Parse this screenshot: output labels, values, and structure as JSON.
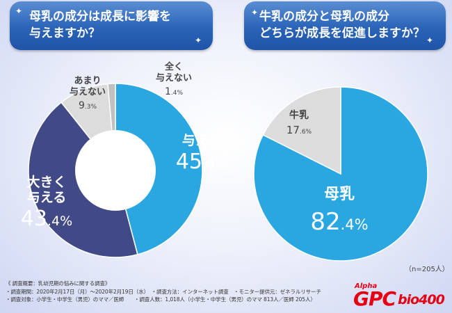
{
  "questions": {
    "left": [
      "母乳の成分は成長に影響を",
      "与えますか？"
    ],
    "right": [
      "牛乳の成分と母乳の成分",
      "どちらが成長を促進しますか？"
    ]
  },
  "chart_data": [
    {
      "type": "pie",
      "title": "母乳の成分は成長に影響を与えますか？",
      "categories": [
        "与える",
        "大きく与える",
        "あまり与えない",
        "全く与えない"
      ],
      "values": [
        45.9,
        43.4,
        9.3,
        1.4
      ],
      "unit": "%",
      "colors": [
        "#2aa7e1",
        "#414a87",
        "#dcdcdc",
        "#c0c0c0"
      ],
      "donut": true
    },
    {
      "type": "pie",
      "title": "牛乳の成分と母乳の成分どちらが成長を促進しますか？",
      "categories": [
        "母乳",
        "牛乳"
      ],
      "values": [
        82.4,
        17.6
      ],
      "unit": "%",
      "colors": [
        "#2aa7e1",
        "#dcdcdc"
      ],
      "donut": false
    }
  ],
  "sample_size": "（n=205人）",
  "footer": {
    "line1": "《 調査概要：乳幼児期の悩みに関する調査》",
    "line2": "・調査期間：2020年2月17日（月）～2020年2月19日（水）　・調査方法：インターネット調査　・モニター提供元：ゼネラルリサーチ",
    "line3": "・調査対象：小学生・中学生（男児）のママ／医師　　・調査人数：1,018人（小学生・中学生（男児）のママ 813人／医師 205人）"
  },
  "brand": {
    "alpha": "Alpha",
    "gpc": "GPC",
    "bio": "bio400"
  }
}
